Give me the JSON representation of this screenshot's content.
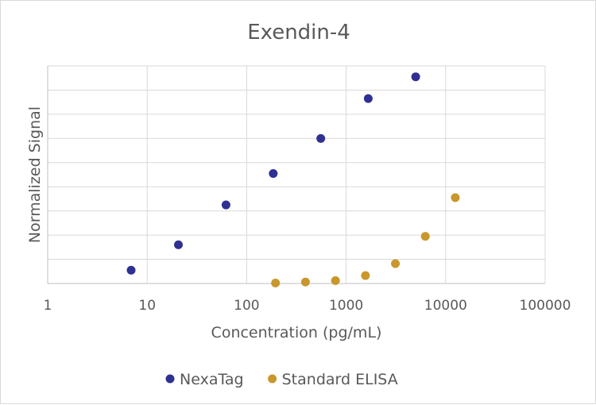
{
  "chart_data": {
    "type": "scatter",
    "title": "Exendin-4",
    "xlabel": "Concentration (pg/mL)",
    "ylabel": "Normalized Signal",
    "x_scale": "log",
    "xlim": [
      1,
      100000
    ],
    "x_ticks": [
      1,
      10,
      100,
      1000,
      10000,
      100000
    ],
    "x_tick_labels": [
      "1",
      "10",
      "100",
      "1000",
      "10000",
      "100000"
    ],
    "ylim": [
      0,
      9
    ],
    "y_gridlines": [
      0,
      1,
      2,
      3,
      4,
      5,
      6,
      7,
      8,
      9
    ],
    "y_tick_labels_shown": false,
    "grid": true,
    "legend_position": "bottom",
    "series": [
      {
        "name": "NexaTag",
        "color": "#2e3192",
        "points": [
          {
            "x": 6.9,
            "y": 0.55
          },
          {
            "x": 20.6,
            "y": 1.6
          },
          {
            "x": 62,
            "y": 3.25
          },
          {
            "x": 185,
            "y": 4.55
          },
          {
            "x": 556,
            "y": 6.0
          },
          {
            "x": 1667,
            "y": 7.65
          },
          {
            "x": 5000,
            "y": 8.55
          }
        ]
      },
      {
        "name": "Standard ELISA",
        "color": "#c9972b",
        "points": [
          {
            "x": 195,
            "y": 0.02
          },
          {
            "x": 390,
            "y": 0.06
          },
          {
            "x": 781,
            "y": 0.12
          },
          {
            "x": 1563,
            "y": 0.33
          },
          {
            "x": 3125,
            "y": 0.82
          },
          {
            "x": 6250,
            "y": 1.95
          },
          {
            "x": 12500,
            "y": 3.55
          }
        ]
      }
    ]
  }
}
